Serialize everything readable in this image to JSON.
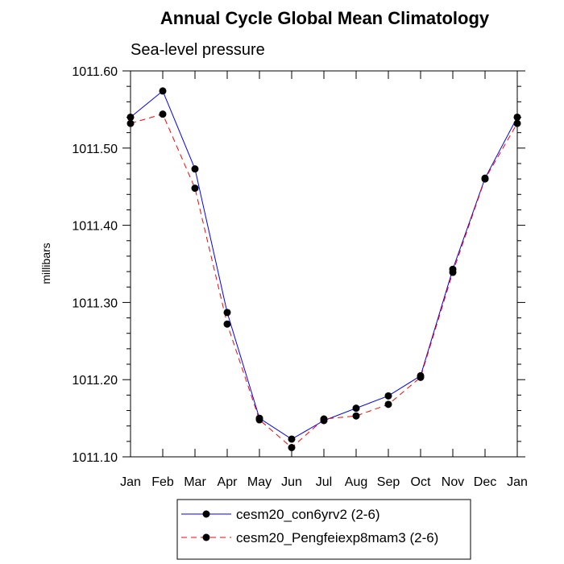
{
  "chart_data": {
    "type": "line",
    "title": "Annual Cycle Global Mean Climatology",
    "subtitle": "Sea-level pressure",
    "xlabel": "",
    "ylabel": "millibars",
    "categories": [
      "Jan",
      "Feb",
      "Mar",
      "Apr",
      "May",
      "Jun",
      "Jul",
      "Aug",
      "Sep",
      "Oct",
      "Nov",
      "Dec",
      "Jan"
    ],
    "ylim": [
      1011.1,
      1011.6
    ],
    "yticks": [
      "1011.10",
      "1011.20",
      "1011.30",
      "1011.40",
      "1011.50",
      "1011.60"
    ],
    "ytick_values": [
      1011.1,
      1011.2,
      1011.3,
      1011.4,
      1011.5,
      1011.6
    ],
    "grid": false,
    "legend_position": "bottom",
    "series": [
      {
        "name": "cesm20_con6yrv2 (2-6)",
        "color": "#0000ff",
        "line_style": "solid",
        "marker": "filled-circle",
        "values": [
          1011.54,
          1011.574,
          1011.473,
          1011.287,
          1011.15,
          1011.123,
          1011.147,
          1011.163,
          1011.179,
          1011.205,
          1011.343,
          1011.461,
          1011.54
        ]
      },
      {
        "name": "cesm20_Pengfeiexp8mam3 (2-6)",
        "color": "#ff0000",
        "line_style": "dashed",
        "marker": "filled-circle",
        "values": [
          1011.532,
          1011.544,
          1011.448,
          1011.272,
          1011.148,
          1011.112,
          1011.149,
          1011.153,
          1011.168,
          1011.203,
          1011.339,
          1011.46,
          1011.532
        ]
      }
    ]
  }
}
